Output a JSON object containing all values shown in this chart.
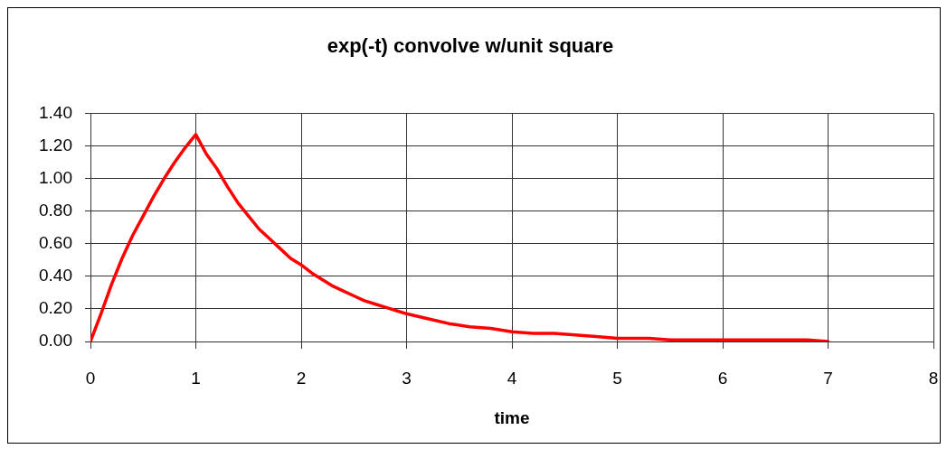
{
  "chart_data": {
    "type": "line",
    "title": "exp(-t) convolve w/unit square",
    "xlabel": "time",
    "x": [
      0,
      0.1,
      0.2,
      0.3,
      0.4,
      0.5,
      0.6,
      0.7,
      0.8,
      0.9,
      1,
      1.1,
      1.2,
      1.3,
      1.4,
      1.5,
      1.6,
      1.7,
      1.8,
      1.9,
      2,
      2.1,
      2.2,
      2.3,
      2.4,
      2.5,
      2.6,
      2.7,
      2.8,
      2.9,
      3,
      3.2,
      3.4,
      3.6,
      3.8,
      4,
      4.2,
      4.4,
      4.6,
      4.8,
      5,
      5.3,
      5.5,
      6,
      6.5,
      6.8,
      7
    ],
    "series": [
      {
        "color": "#ff0000",
        "values": [
          0,
          0.17,
          0.35,
          0.51,
          0.65,
          0.77,
          0.89,
          1.0,
          1.1,
          1.19,
          1.27,
          1.15,
          1.06,
          0.95,
          0.85,
          0.77,
          0.69,
          0.63,
          0.57,
          0.51,
          0.47,
          0.42,
          0.38,
          0.34,
          0.31,
          0.28,
          0.25,
          0.23,
          0.21,
          0.19,
          0.17,
          0.14,
          0.11,
          0.09,
          0.08,
          0.06,
          0.05,
          0.05,
          0.04,
          0.03,
          0.02,
          0.02,
          0.01,
          0.01,
          0.01,
          0.01,
          0
        ]
      }
    ],
    "xlim": [
      0,
      8
    ],
    "xticks": [
      0,
      1,
      2,
      3,
      4,
      5,
      6,
      7,
      8
    ],
    "ylim": [
      0,
      1.4
    ],
    "yticks": [
      {
        "value": 0,
        "label": "0.00"
      },
      {
        "value": 0.2,
        "label": "0.20"
      },
      {
        "value": 0.4,
        "label": "0.40"
      },
      {
        "value": 0.6,
        "label": "0.60"
      },
      {
        "value": 0.8,
        "label": "0.80"
      },
      {
        "value": 1,
        "label": "1.00"
      },
      {
        "value": 1.2,
        "label": "1.20"
      },
      {
        "value": 1.4,
        "label": "1.40"
      }
    ],
    "grid": true,
    "marker": "none",
    "line_style": "solid"
  }
}
